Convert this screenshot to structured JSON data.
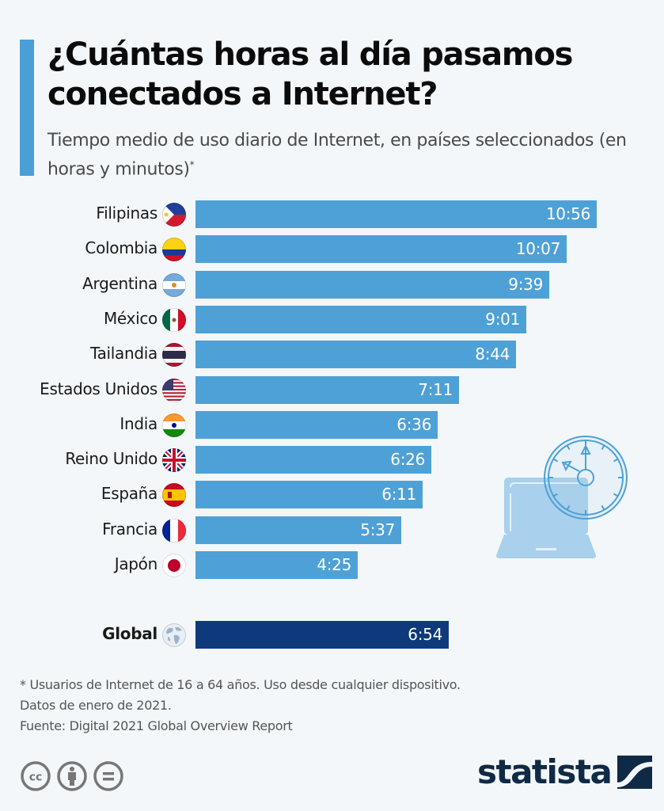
{
  "header": {
    "title": "¿Cuántas horas al día pasamos conectados a Internet?",
    "subtitle": "Tiempo medio de uso diario de Internet, en países seleccionados (en horas y minutos)",
    "subtitle_marker": "*"
  },
  "colors": {
    "accent": "#4a9fd6",
    "bar": "#4ea1d6",
    "global_bar": "#0e3a7c",
    "brand": "#0f2a44"
  },
  "chart_data": {
    "type": "bar",
    "orientation": "horizontal",
    "title": "¿Cuántas horas al día pasamos conectados a Internet?",
    "subtitle": "Tiempo medio de uso diario de Internet, en países seleccionados (en horas y minutos)",
    "xlabel": "",
    "ylabel": "",
    "unit": "horas:minutos",
    "grid": false,
    "xlim_minutes": [
      0,
      690
    ],
    "categories": [
      "Filipinas",
      "Colombia",
      "Argentina",
      "México",
      "Tailandia",
      "Estados Unidos",
      "India",
      "Reino Unido",
      "España",
      "Francia",
      "Japón"
    ],
    "labels": [
      "10:56",
      "10:07",
      "9:39",
      "9:01",
      "8:44",
      "7:11",
      "6:36",
      "6:26",
      "6:11",
      "5:37",
      "4:25"
    ],
    "values_minutes": [
      656,
      607,
      579,
      541,
      524,
      431,
      396,
      386,
      371,
      337,
      265
    ],
    "flags": [
      "flag-philippines-icon",
      "flag-colombia-icon",
      "flag-argentina-icon",
      "flag-mexico-icon",
      "flag-thailand-icon",
      "flag-usa-icon",
      "flag-india-icon",
      "flag-uk-icon",
      "flag-spain-icon",
      "flag-france-icon",
      "flag-japan-icon"
    ],
    "highlight": {
      "category": "Global",
      "label": "6:54",
      "value_minutes": 414,
      "icon": "globe-icon"
    }
  },
  "footer": {
    "note_line1": "* Usuarios de Internet de 16 a 64 años. Uso desde cualquier dispositivo.",
    "note_line2": "Datos de enero de 2021.",
    "source": "Fuente: Digital 2021 Global Overview Report",
    "license_icons": [
      "cc-icon",
      "attribution-icon",
      "no-derivatives-icon"
    ],
    "brand": "statista"
  }
}
